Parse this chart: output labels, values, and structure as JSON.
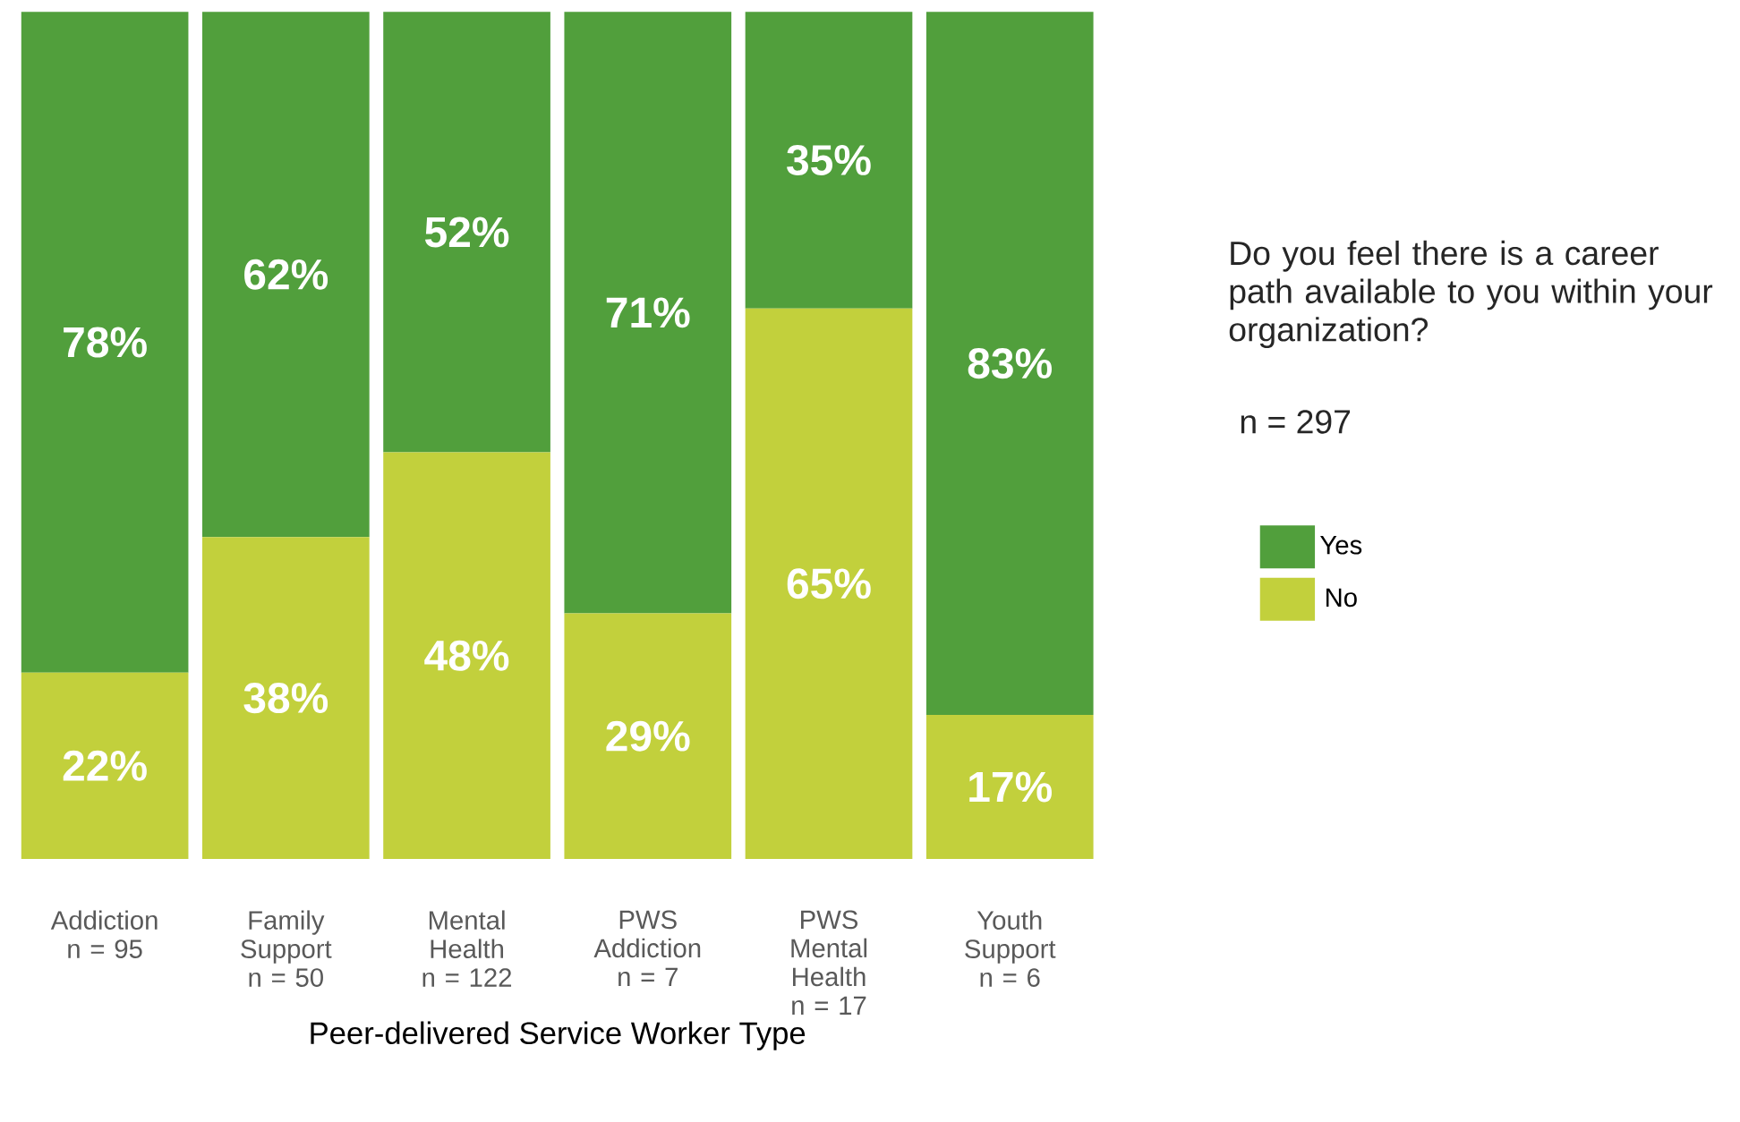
{
  "chart_data": {
    "type": "bar",
    "stacked": true,
    "title": "Do you feel there is a career path available to you within your organization?",
    "subtitle": "n = 297",
    "xlabel": "Peer-delivered Service Worker Type",
    "categories": [
      "Addiction n = 95",
      "Family Support n = 50",
      "Mental Health n = 122",
      "PWS Addiction n = 7",
      "PWS Mental Health n = 17",
      "Youth Support n = 6"
    ],
    "series": [
      {
        "name": "No",
        "color": "#c2d03c",
        "values": [
          22,
          38,
          48,
          29,
          65,
          17
        ],
        "value_labels": [
          "22%",
          "38%",
          "48%",
          "29%",
          "65%",
          "17%"
        ]
      },
      {
        "name": "Yes",
        "color": "#519f3c",
        "values": [
          78,
          62,
          52,
          71,
          35,
          83
        ],
        "value_labels": [
          "78%",
          "62%",
          "52%",
          "71%",
          "35%",
          "83%"
        ]
      }
    ],
    "legend": "right"
  }
}
